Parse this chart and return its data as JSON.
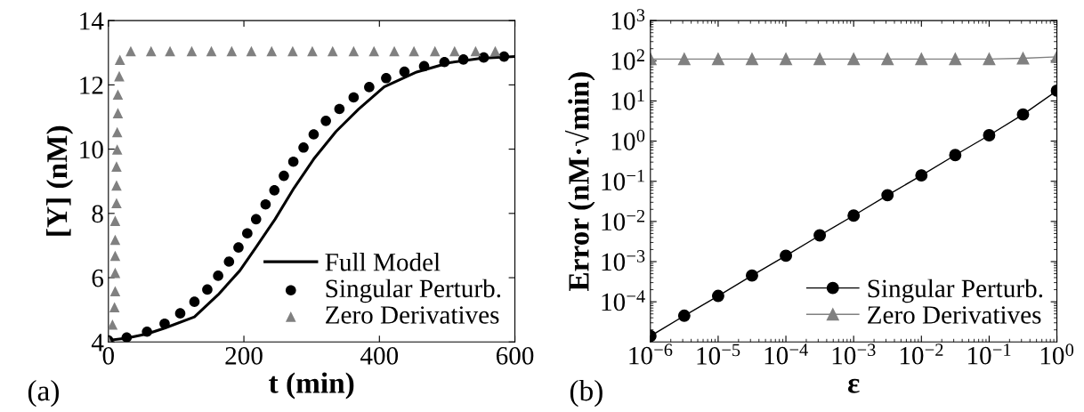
{
  "chart_data": [
    {
      "type": "line",
      "xlabel": "t (min)",
      "ylabel": "[Y] (nM)",
      "annotations": [
        "(a)"
      ],
      "xlim": [
        0,
        600
      ],
      "ylim": [
        4,
        14
      ],
      "xticks": [
        0,
        200,
        400,
        600
      ],
      "yticks": [
        4,
        6,
        8,
        10,
        12,
        14
      ],
      "grid": false,
      "legend": "bottom right",
      "series": [
        {
          "name": "Full Model",
          "type": "line",
          "color": "#000000",
          "marker": "none",
          "line_style": "solid",
          "x": [
            0,
            27,
            57,
            83,
            127,
            162,
            194,
            217,
            246,
            274,
            303,
            336,
            369,
            407,
            455,
            503,
            550,
            600
          ],
          "values": [
            4.05,
            4.12,
            4.25,
            4.43,
            4.78,
            5.47,
            6.22,
            6.92,
            7.82,
            8.79,
            9.69,
            10.55,
            11.24,
            11.94,
            12.4,
            12.69,
            12.83,
            12.88
          ]
        },
        {
          "name": "Singular Perturb.",
          "type": "scatter",
          "color": "#000000",
          "marker": "circle",
          "x": [
            0,
            27,
            57,
            83,
            106,
            127,
            146,
            162,
            178,
            192,
            205,
            218,
            232,
            245,
            259,
            273,
            288,
            303,
            321,
            341,
            362,
            385,
            410,
            437,
            466,
            496,
            524,
            554,
            584
          ],
          "values": [
            4.05,
            4.14,
            4.32,
            4.57,
            4.89,
            5.25,
            5.63,
            6.06,
            6.5,
            6.94,
            7.38,
            7.82,
            8.28,
            8.72,
            9.17,
            9.61,
            10.05,
            10.46,
            10.88,
            11.25,
            11.61,
            11.93,
            12.21,
            12.41,
            12.58,
            12.71,
            12.79,
            12.85,
            12.88
          ]
        },
        {
          "name": "Zero Derivatives",
          "type": "scatter",
          "color": "#808080",
          "marker": "triangle",
          "x": [
            0,
            6,
            9,
            10,
            10,
            10,
            10,
            10,
            12,
            12,
            12,
            13,
            13,
            14,
            14,
            16,
            17,
            33,
            63,
            91,
            123,
            152,
            182,
            211,
            241,
            272,
            301,
            331,
            362,
            392,
            422,
            451,
            482,
            511,
            542,
            571
          ],
          "values": [
            4.03,
            4.54,
            5.08,
            5.58,
            6.15,
            6.68,
            7.18,
            7.77,
            8.32,
            8.87,
            9.46,
            9.99,
            10.53,
            11.12,
            11.7,
            12.27,
            12.78,
            13.05,
            13.05,
            13.05,
            13.05,
            13.05,
            13.05,
            13.05,
            13.05,
            13.05,
            13.05,
            13.05,
            13.05,
            13.05,
            13.05,
            13.05,
            13.05,
            13.05,
            13.05,
            13.05
          ]
        }
      ]
    },
    {
      "type": "line",
      "xlabel": "ε",
      "ylabel": "Error (nM·√min)",
      "annotations": [
        "(b)"
      ],
      "log": "xy",
      "xlim": [
        1e-06,
        1
      ],
      "ylim": [
        1e-05,
        1000
      ],
      "xticks": [
        {
          "value": 1e-06,
          "label": "10$^{−6}$"
        },
        {
          "value": 1e-05,
          "label": "10$^{−5}$"
        },
        {
          "value": 0.0001,
          "label": "10$^{−4}$"
        },
        {
          "value": 0.001,
          "label": "10$^{−3}$"
        },
        {
          "value": 0.01,
          "label": "10$^{−2}$"
        },
        {
          "value": 0.1,
          "label": "10$^{−1}$"
        },
        {
          "value": 1,
          "label": "10$^{0}$"
        }
      ],
      "yticks": [
        {
          "value": 0.0001,
          "label": "10$^{−4}$"
        },
        {
          "value": 0.001,
          "label": "10$^{−3}$"
        },
        {
          "value": 0.01,
          "label": "10$^{−2}$"
        },
        {
          "value": 0.1,
          "label": "10$^{−1}$"
        },
        {
          "value": 1,
          "label": "10$^{0}$"
        },
        {
          "value": 10,
          "label": "10$^{1}$"
        },
        {
          "value": 100,
          "label": "10$^{2}$"
        },
        {
          "value": 1000,
          "label": "10$^{3}$"
        }
      ],
      "grid": false,
      "legend": "bottom right",
      "x": [
        1e-06,
        3.16e-06,
        1e-05,
        3.16e-05,
        0.0001,
        0.000316,
        0.001,
        0.00316,
        0.01,
        0.0316,
        0.1,
        0.316,
        1
      ],
      "series": [
        {
          "name": "Singular Perturb.",
          "color": "#000000",
          "marker": "circle",
          "line_style": "solid",
          "values": [
            1.4e-05,
            4.5e-05,
            0.00014,
            0.00045,
            0.0014,
            0.0045,
            0.014,
            0.045,
            0.14,
            0.45,
            1.4,
            4.6,
            18
          ]
        },
        {
          "name": "Zero Derivatives",
          "color": "#808080",
          "marker": "triangle",
          "line_style": "solid",
          "values": [
            110,
            110,
            110,
            110,
            110,
            110,
            110,
            110,
            110,
            110,
            110,
            115,
            125
          ]
        }
      ]
    }
  ]
}
